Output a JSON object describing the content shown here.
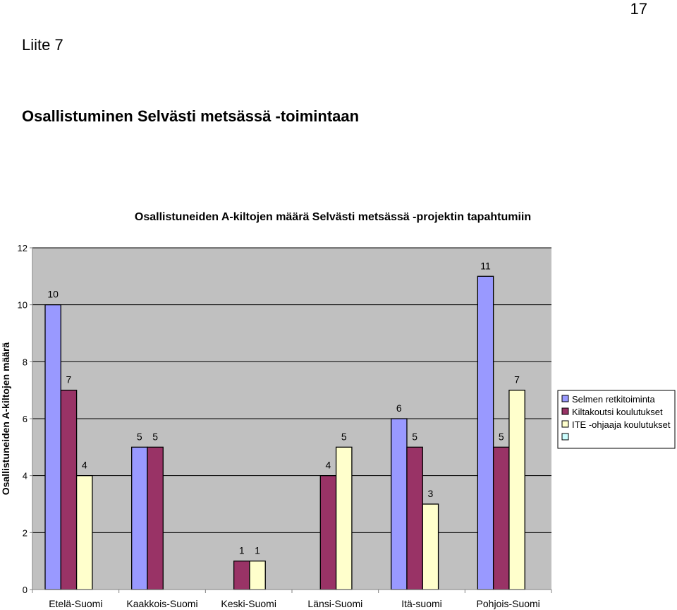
{
  "page": {
    "number": "17",
    "appendix": "Liite 7",
    "heading": "Osallistuminen Selvästi metsässä -toimintaan"
  },
  "chart_data": {
    "type": "bar",
    "title": "Osallistuneiden A-kiltojen määrä Selvästi metsässä -projektin tapahtumiin",
    "xlabel": "",
    "ylabel": "Osallistuneiden A-kiltojen määrä",
    "ylim": [
      0,
      12
    ],
    "yticks": [
      0,
      2,
      4,
      6,
      8,
      10,
      12
    ],
    "grid": true,
    "legend_position": "right",
    "categories": [
      "Etelä-Suomi",
      "Kaakkois-Suomi",
      "Keski-Suomi",
      "Länsi-Suomi",
      "Itä-suomi",
      "Pohjois-Suomi"
    ],
    "series": [
      {
        "name": "Selmen retkitoiminta",
        "color": "#9999ff",
        "values": [
          10,
          5,
          null,
          null,
          6,
          11
        ]
      },
      {
        "name": "Kiltakoutsi koulutukset",
        "color": "#993366",
        "values": [
          7,
          5,
          1,
          4,
          5,
          5
        ]
      },
      {
        "name": "ITE -ohjaaja koulutukset",
        "color": "#ffffcc",
        "values": [
          4,
          null,
          1,
          5,
          3,
          7
        ]
      },
      {
        "name": "",
        "color": "#ccffff",
        "values": [
          null,
          null,
          null,
          null,
          null,
          null
        ]
      }
    ]
  }
}
